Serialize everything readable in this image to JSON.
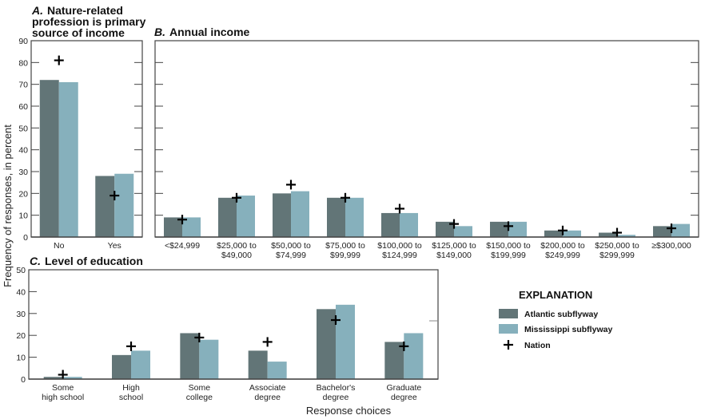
{
  "chart_data": [
    {
      "id": "A",
      "type": "bar",
      "title_letter": "A.",
      "title": [
        "Nature-related",
        "profession is primary",
        "source of income"
      ],
      "categories": [
        "No",
        "Yes"
      ],
      "series": [
        {
          "name": "Atlantic subflyway",
          "values": [
            72,
            28
          ]
        },
        {
          "name": "Mississippi subflyway",
          "values": [
            71,
            29
          ]
        },
        {
          "name": "Nation",
          "values": [
            81,
            19
          ],
          "marker": "plus"
        }
      ],
      "ylim": [
        0,
        90
      ],
      "yticks": [
        0,
        10,
        20,
        30,
        40,
        50,
        60,
        70,
        80,
        90
      ]
    },
    {
      "id": "B",
      "type": "bar",
      "title_letter": "B.",
      "title": [
        "Annual income"
      ],
      "categories": [
        [
          "<$24,999"
        ],
        [
          "$25,000 to",
          "$49,000"
        ],
        [
          "$50,000 to",
          "$74,999"
        ],
        [
          "$75,000 to",
          "$99,999"
        ],
        [
          "$100,000 to",
          "$124,999"
        ],
        [
          "$125,000 to",
          "$149,000"
        ],
        [
          "$150,000 to",
          "$199,999"
        ],
        [
          "$200,000 to",
          "$249,999"
        ],
        [
          "$250,000 to",
          "$299,999"
        ],
        [
          "≥$300,000"
        ]
      ],
      "series": [
        {
          "name": "Atlantic subflyway",
          "values": [
            9,
            18,
            20,
            18,
            11,
            7,
            7,
            3,
            2,
            5
          ]
        },
        {
          "name": "Mississippi subflyway",
          "values": [
            9,
            19,
            21,
            18,
            11,
            5,
            7,
            3,
            1,
            6
          ]
        },
        {
          "name": "Nation",
          "values": [
            8,
            18,
            24,
            18,
            13,
            6,
            5,
            3,
            2,
            4
          ],
          "marker": "plus"
        }
      ],
      "ylim": [
        0,
        90
      ],
      "yticks": [
        0,
        10,
        20,
        30,
        40,
        50,
        60,
        70,
        80,
        90
      ]
    },
    {
      "id": "C",
      "type": "bar",
      "title_letter": "C.",
      "title": [
        "Level of education"
      ],
      "categories": [
        [
          "Some",
          "high school"
        ],
        [
          "High",
          "school"
        ],
        [
          "Some",
          "college"
        ],
        [
          "Associate",
          "degree"
        ],
        [
          "Bachelor's",
          "degree"
        ],
        [
          "Graduate",
          "degree"
        ]
      ],
      "series": [
        {
          "name": "Atlantic subflyway",
          "values": [
            1,
            11,
            21,
            13,
            32,
            17
          ]
        },
        {
          "name": "Mississippi subflyway",
          "values": [
            1,
            13,
            18,
            8,
            34,
            21
          ]
        },
        {
          "name": "Nation",
          "values": [
            2,
            15,
            19,
            17,
            27,
            15
          ],
          "marker": "plus"
        }
      ],
      "ylim": [
        0,
        50
      ],
      "yticks": [
        0,
        10,
        20,
        30,
        40,
        50
      ]
    }
  ],
  "ylabel": "Frequency of responses, in percent",
  "xlabel": "Response choices",
  "legend": {
    "title": "EXPLANATION",
    "items": [
      {
        "label": "Atlantic subflyway",
        "type": "box",
        "color": "#627577"
      },
      {
        "label": "Mississippi subflyway",
        "type": "box",
        "color": "#86b0bc"
      },
      {
        "label": "Nation",
        "type": "plus",
        "color": "#000000"
      }
    ]
  },
  "colors": {
    "atlantic": "#627577",
    "mississippi": "#86b0bc",
    "nation": "#000000",
    "frame": "#444444"
  }
}
